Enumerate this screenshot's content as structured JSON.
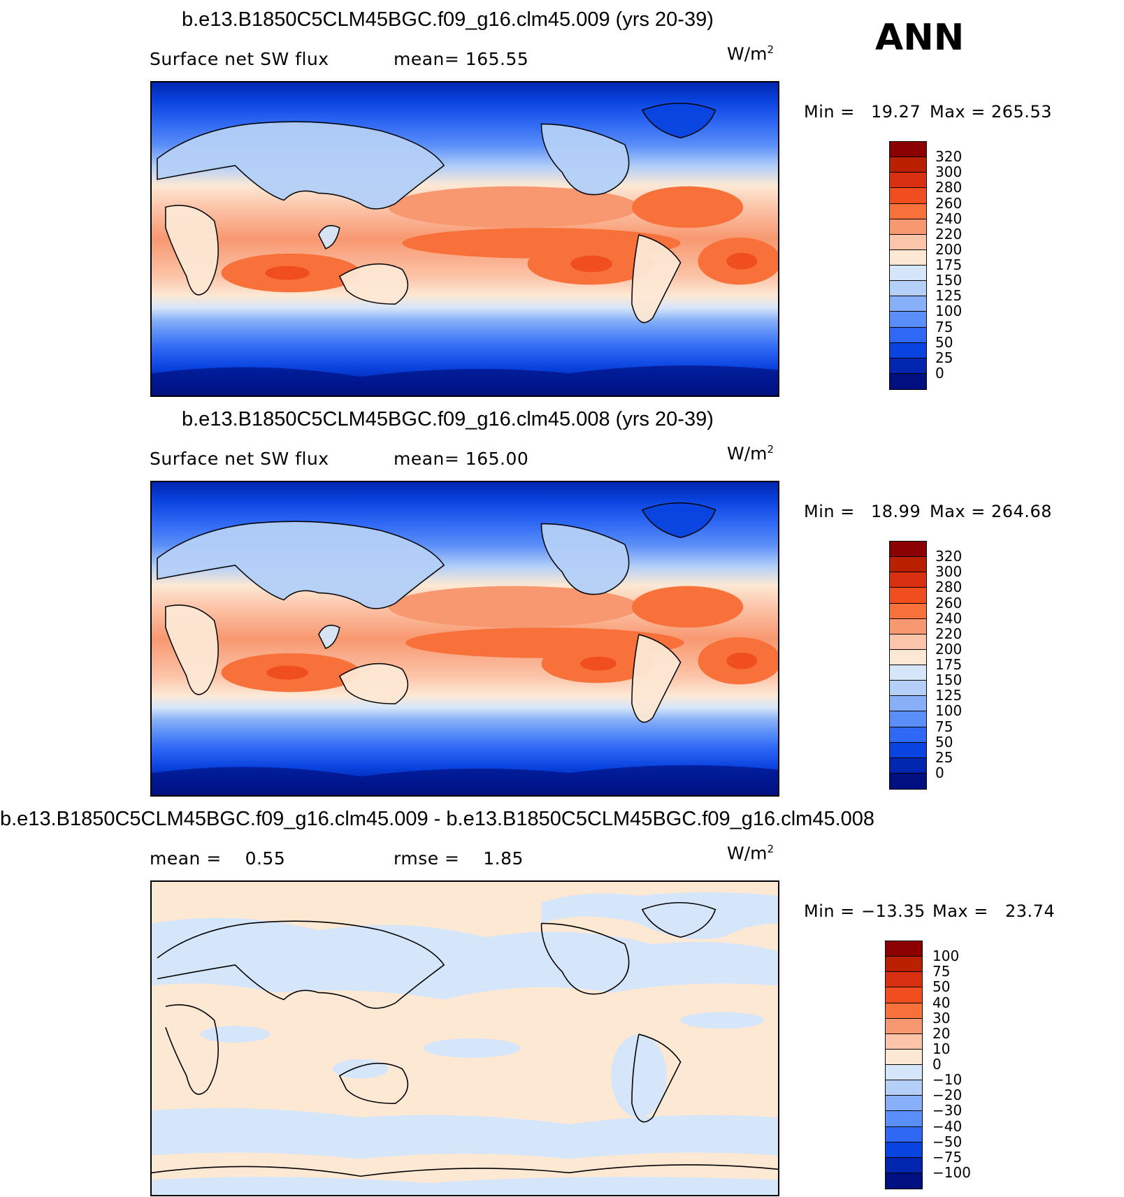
{
  "season": "ANN",
  "units_base": "W/m",
  "units_sup": "2",
  "panels": [
    {
      "title": "b.e13.B1850C5CLM45BGC.f09_g16.clm45.009 (yrs 20-39)",
      "left_label": "Surface net SW flux",
      "mid_label": "mean= 165.55",
      "min_label": "Min =",
      "min_value": "19.27",
      "max_label": "Max =",
      "max_value": "265.53",
      "kind": "abs"
    },
    {
      "title": "b.e13.B1850C5CLM45BGC.f09_g16.clm45.008 (yrs 20-39)",
      "left_label": "Surface net SW flux",
      "mid_label": "mean= 165.00",
      "min_label": "Min =",
      "min_value": "18.99",
      "max_label": "Max =",
      "max_value": "264.68",
      "kind": "abs"
    },
    {
      "title": "b.e13.B1850C5CLM45BGC.f09_g16.clm45.009 - b.e13.B1850C5CLM45BGC.f09_g16.clm45.008",
      "left_label": "mean =    0.55",
      "mid_label": "rmse =    1.85",
      "min_label": "Min =",
      "min_value": "−13.35",
      "max_label": "Max =",
      "max_value": "23.74",
      "kind": "diff"
    }
  ],
  "colorbars": {
    "abs": {
      "labels": [
        "320",
        "300",
        "280",
        "260",
        "240",
        "220",
        "200",
        "175",
        "150",
        "125",
        "100",
        "75",
        "50",
        "25",
        "0"
      ],
      "colors": [
        "#8b0000",
        "#b82000",
        "#d83010",
        "#f04e1e",
        "#f8703a",
        "#f89870",
        "#fcc4a8",
        "#fde8d4",
        "#d6e6fa",
        "#b4d0f8",
        "#88b0f8",
        "#5a8ef8",
        "#2e68f4",
        "#0a44e0",
        "#0026b0",
        "#001080"
      ]
    },
    "diff": {
      "labels": [
        "100",
        "75",
        "50",
        "40",
        "30",
        "20",
        "10",
        "0",
        "−10",
        "−20",
        "−30",
        "−40",
        "−50",
        "−75",
        "−100"
      ],
      "colors": [
        "#8b0000",
        "#b82000",
        "#d83010",
        "#f04e1e",
        "#f8703a",
        "#f89870",
        "#fcc4a8",
        "#fde8d4",
        "#d6e6fa",
        "#b4d0f8",
        "#88b0f8",
        "#5a8ef8",
        "#2e68f4",
        "#0a44e0",
        "#0026b0",
        "#001080"
      ]
    }
  }
}
